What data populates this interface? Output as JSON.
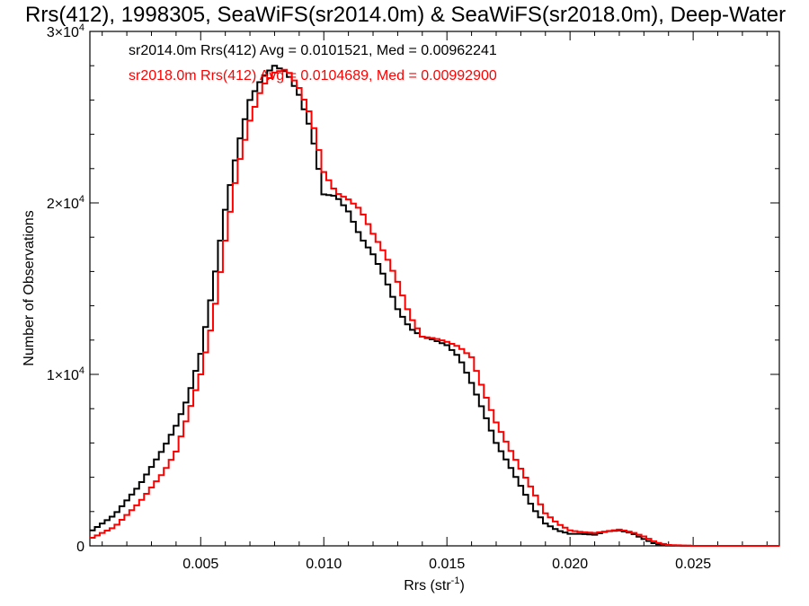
{
  "chart_data": {
    "type": "line",
    "title": "Rrs(412), 1998305, SeaWiFS(sr2014.0m) & SeaWiFS(sr2018.0m), Deep-Water",
    "xlabel": "Rrs (str",
    "xlabel_sup": "-1",
    "xlabel_close": ")",
    "ylabel": "Number of Observations",
    "xlim": [
      0.0005,
      0.0285
    ],
    "ylim": [
      0,
      30000
    ],
    "xticks": [
      {
        "value": 0.005,
        "label": "0.005"
      },
      {
        "value": 0.01,
        "label": "0.010"
      },
      {
        "value": 0.015,
        "label": "0.015"
      },
      {
        "value": 0.02,
        "label": "0.020"
      },
      {
        "value": 0.025,
        "label": "0.025"
      }
    ],
    "yticks": [
      {
        "value": 0,
        "label": "0",
        "sup": ""
      },
      {
        "value": 10000,
        "label": "1×10",
        "sup": "4"
      },
      {
        "value": 20000,
        "label": "2×10",
        "sup": "4"
      },
      {
        "value": 30000,
        "label": "3×10",
        "sup": "4"
      }
    ],
    "grid": false,
    "legend_position": "top-left",
    "series": [
      {
        "name": "sr2014.0m Rrs(412) Avg = 0.0101521, Med = 0.00962241",
        "color": "#000000",
        "points": [
          [
            0.0005,
            800
          ],
          [
            0.0015,
            1800
          ],
          [
            0.0025,
            3500
          ],
          [
            0.0035,
            5700
          ],
          [
            0.004,
            7000
          ],
          [
            0.0045,
            8700
          ],
          [
            0.005,
            11200
          ],
          [
            0.0055,
            15100
          ],
          [
            0.006,
            19600
          ],
          [
            0.0065,
            23200
          ],
          [
            0.007,
            26000
          ],
          [
            0.0075,
            27300
          ],
          [
            0.008,
            28000
          ],
          [
            0.0085,
            27600
          ],
          [
            0.009,
            26300
          ],
          [
            0.0095,
            24200
          ],
          [
            0.01,
            20500
          ],
          [
            0.0105,
            20400
          ],
          [
            0.011,
            19500
          ],
          [
            0.0115,
            18000
          ],
          [
            0.012,
            17000
          ],
          [
            0.0125,
            15600
          ],
          [
            0.013,
            13800
          ],
          [
            0.0135,
            12700
          ],
          [
            0.014,
            12200
          ],
          [
            0.0145,
            12000
          ],
          [
            0.015,
            11700
          ],
          [
            0.0155,
            11000
          ],
          [
            0.016,
            9500
          ],
          [
            0.0165,
            7800
          ],
          [
            0.017,
            6000
          ],
          [
            0.0175,
            4800
          ],
          [
            0.018,
            3500
          ],
          [
            0.0185,
            2200
          ],
          [
            0.019,
            1300
          ],
          [
            0.0195,
            900
          ],
          [
            0.02,
            700
          ],
          [
            0.0205,
            700
          ],
          [
            0.021,
            650
          ],
          [
            0.0215,
            850
          ],
          [
            0.022,
            900
          ],
          [
            0.0225,
            750
          ],
          [
            0.023,
            400
          ],
          [
            0.0235,
            100
          ],
          [
            0.024,
            20
          ],
          [
            0.025,
            0
          ],
          [
            0.0285,
            0
          ]
        ]
      },
      {
        "name": "sr2018.0m Rrs(412) Avg = 0.0104689, Med = 0.00992900",
        "color": "#ff0000",
        "points": [
          [
            0.0005,
            400
          ],
          [
            0.0015,
            1100
          ],
          [
            0.0025,
            2500
          ],
          [
            0.0035,
            4300
          ],
          [
            0.004,
            5500
          ],
          [
            0.0045,
            7700
          ],
          [
            0.005,
            10000
          ],
          [
            0.0055,
            13200
          ],
          [
            0.006,
            17800
          ],
          [
            0.0065,
            22000
          ],
          [
            0.007,
            24800
          ],
          [
            0.0075,
            26800
          ],
          [
            0.008,
            27600
          ],
          [
            0.0085,
            27800
          ],
          [
            0.009,
            26700
          ],
          [
            0.0095,
            25000
          ],
          [
            0.01,
            21800
          ],
          [
            0.0105,
            20600
          ],
          [
            0.011,
            20200
          ],
          [
            0.0115,
            19600
          ],
          [
            0.012,
            18200
          ],
          [
            0.0125,
            17000
          ],
          [
            0.013,
            15400
          ],
          [
            0.0135,
            13400
          ],
          [
            0.014,
            12200
          ],
          [
            0.0145,
            12100
          ],
          [
            0.015,
            11900
          ],
          [
            0.0155,
            11600
          ],
          [
            0.016,
            11000
          ],
          [
            0.0165,
            9000
          ],
          [
            0.017,
            7200
          ],
          [
            0.0175,
            5800
          ],
          [
            0.018,
            4500
          ],
          [
            0.0185,
            3200
          ],
          [
            0.019,
            1900
          ],
          [
            0.0195,
            1300
          ],
          [
            0.02,
            900
          ],
          [
            0.0205,
            800
          ],
          [
            0.021,
            750
          ],
          [
            0.0215,
            850
          ],
          [
            0.022,
            950
          ],
          [
            0.0225,
            800
          ],
          [
            0.023,
            550
          ],
          [
            0.0235,
            200
          ],
          [
            0.024,
            50
          ],
          [
            0.025,
            0
          ],
          [
            0.0285,
            0
          ]
        ]
      }
    ]
  }
}
